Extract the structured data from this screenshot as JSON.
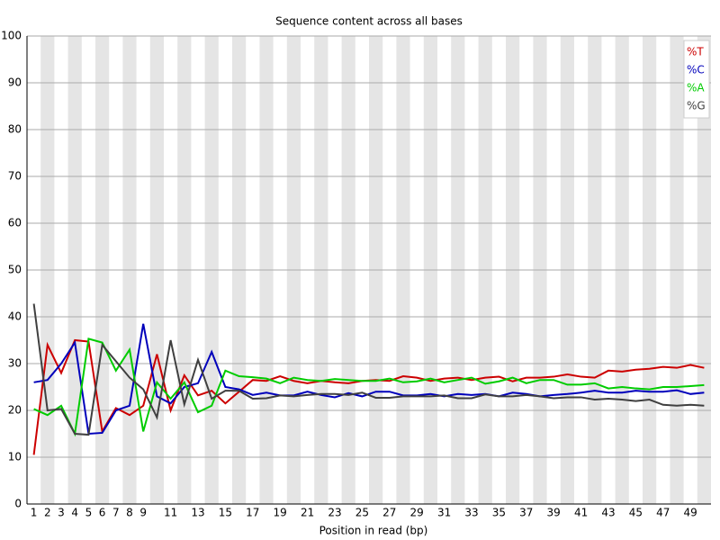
{
  "chart_data": {
    "type": "line",
    "title": "Sequence content across all bases",
    "x_label": "Position in read (bp)",
    "categories": [
      "1",
      "2",
      "3",
      "4",
      "5",
      "6",
      "7",
      "8",
      "9",
      null,
      "11",
      null,
      "13",
      null,
      "15",
      null,
      "17",
      null,
      "19",
      null,
      "21",
      null,
      "23",
      null,
      "25",
      null,
      "27",
      null,
      "29",
      null,
      "31",
      null,
      "33",
      null,
      "35",
      null,
      "37",
      null,
      "39",
      null,
      "41",
      null,
      "43",
      null,
      "45",
      null,
      "47",
      null,
      "49",
      null
    ],
    "ylim": [
      0,
      100
    ],
    "yticks": [
      0,
      10,
      20,
      30,
      40,
      50,
      60,
      70,
      80,
      90,
      100
    ],
    "grid": true,
    "legend": "top-right",
    "series": [
      {
        "name": "%T",
        "color": "#cc0000",
        "values": [
          10.5,
          34,
          28,
          35,
          34.7,
          15.5,
          20.5,
          19,
          21,
          32,
          20,
          27.5,
          23.2,
          24.2,
          21.5,
          24,
          26.5,
          26.3,
          27.3,
          26.3,
          25.8,
          26.3,
          26,
          25.8,
          26.3,
          26.5,
          26.3,
          27.3,
          27,
          26.3,
          26.8,
          27,
          26.5,
          27,
          27.2,
          26.2,
          27,
          27,
          27.2,
          27.7,
          27.2,
          27,
          28.5,
          28.3,
          28.7,
          28.9,
          29.3,
          29.1,
          29.7,
          29.1
        ]
      },
      {
        "name": "%C",
        "color": "#0000bb",
        "values": [
          26,
          26.5,
          30,
          34.5,
          15,
          15.2,
          20,
          21,
          38.5,
          23,
          21.5,
          25,
          25.8,
          32.5,
          25,
          24.5,
          23.3,
          23.8,
          23.2,
          23.2,
          24,
          23.3,
          22.8,
          23.7,
          23,
          24,
          24,
          23.2,
          23.2,
          23.5,
          23,
          23.5,
          23.3,
          23.5,
          23,
          23.8,
          23.5,
          23,
          23.3,
          23.5,
          23.8,
          24.2,
          23.8,
          23.8,
          24.2,
          24,
          24,
          24.3,
          23.5,
          23.8
        ]
      },
      {
        "name": "%A",
        "color": "#00cc00",
        "values": [
          20.3,
          19,
          21,
          15,
          35.3,
          34.5,
          28.5,
          33,
          15.5,
          26,
          22.5,
          26,
          19.6,
          21,
          28.5,
          27.3,
          27.1,
          26.8,
          25.8,
          27,
          26.5,
          26.3,
          26.7,
          26.5,
          26.3,
          26.3,
          26.8,
          26,
          26.2,
          26.8,
          26,
          26.5,
          27,
          25.7,
          26.2,
          27,
          25.8,
          26.5,
          26.5,
          25.5,
          25.5,
          25.8,
          24.7,
          25,
          24.7,
          24.5,
          25,
          25,
          25.2,
          25.4
        ]
      },
      {
        "name": "%G",
        "color": "#404040",
        "values": [
          42.8,
          20,
          20.3,
          15,
          14.8,
          34,
          30.5,
          27,
          24.5,
          18.5,
          35,
          21.3,
          30.8,
          22.5,
          24.2,
          24.2,
          22.5,
          22.6,
          23.2,
          23,
          23.3,
          23.5,
          23.5,
          23.3,
          23.8,
          22.7,
          22.7,
          23,
          23,
          23,
          23.2,
          22.6,
          22.6,
          23.4,
          23,
          23,
          23.3,
          23,
          22.6,
          22.8,
          22.8,
          22.3,
          22.5,
          22.3,
          22,
          22.3,
          21.2,
          21,
          21.2,
          21
        ]
      }
    ]
  }
}
